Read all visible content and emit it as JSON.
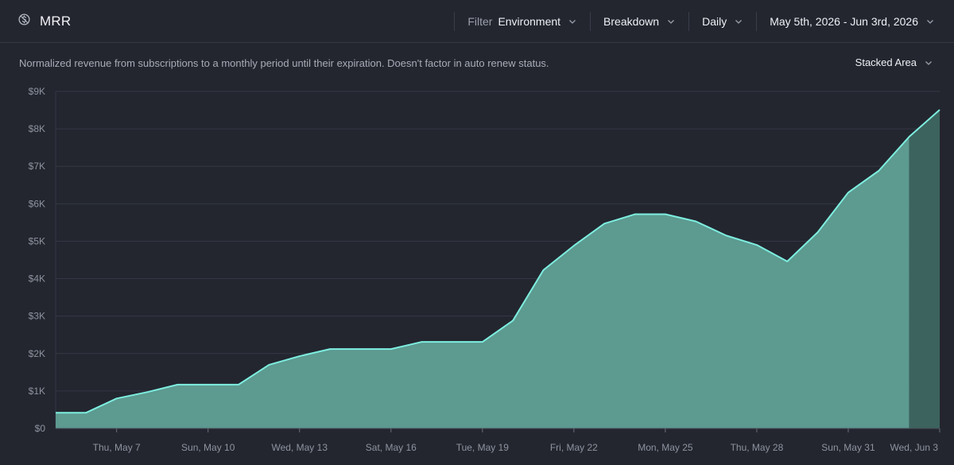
{
  "header": {
    "title": "MRR",
    "filter_label": "Filter",
    "filter_value": "Environment",
    "breakdown_label": "Breakdown",
    "interval_label": "Daily",
    "date_range": "May 5th, 2026 - Jun 3rd, 2026"
  },
  "description": "Normalized revenue from subscriptions to a monthly period until their expiration. Doesn't factor in auto renew status.",
  "view_mode": "Stacked Area",
  "colors": {
    "line": "#7eeee0",
    "area": "#5d9a90",
    "area_recent": "#3c635e",
    "grid": "#343844"
  },
  "chart_data": {
    "type": "area",
    "title": "",
    "xlabel": "",
    "ylabel": "",
    "ylim": [
      0,
      9000
    ],
    "grid": true,
    "legend": "none",
    "y_ticks": [
      "$0",
      "$1K",
      "$2K",
      "$3K",
      "$4K",
      "$5K",
      "$6K",
      "$7K",
      "$8K",
      "$9K"
    ],
    "x_tick_labels": [
      "Thu, May 7",
      "Sun, May 10",
      "Wed, May 13",
      "Sat, May 16",
      "Tue, May 19",
      "Fri, May 22",
      "Mon, May 25",
      "Thu, May 28",
      "Sun, May 31",
      "Wed, Jun 3"
    ],
    "x_tick_indices": [
      2,
      5,
      8,
      11,
      14,
      17,
      20,
      23,
      26,
      29
    ],
    "incomplete_from_index": 28,
    "x": [
      "May 5",
      "May 6",
      "May 7",
      "May 8",
      "May 9",
      "May 10",
      "May 11",
      "May 12",
      "May 13",
      "May 14",
      "May 15",
      "May 16",
      "May 17",
      "May 18",
      "May 19",
      "May 20",
      "May 21",
      "May 22",
      "May 23",
      "May 24",
      "May 25",
      "May 26",
      "May 27",
      "May 28",
      "May 29",
      "May 30",
      "May 31",
      "Jun 1",
      "Jun 2",
      "Jun 3"
    ],
    "series": [
      {
        "values": [
          420,
          420,
          800,
          970,
          1170,
          1170,
          1170,
          1700,
          1930,
          2120,
          2120,
          2120,
          2310,
          2310,
          2310,
          2880,
          4230,
          4880,
          5470,
          5720,
          5720,
          5530,
          5150,
          4900,
          4460,
          5240,
          6300,
          6880,
          7790,
          8510
        ]
      }
    ]
  }
}
